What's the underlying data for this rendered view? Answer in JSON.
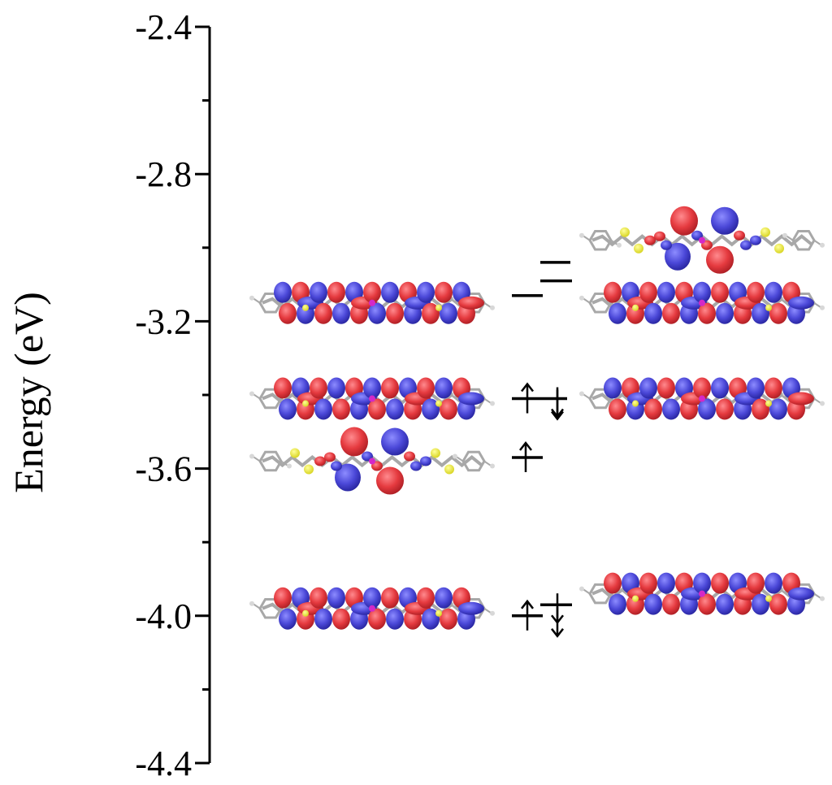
{
  "chart_data": {
    "type": "energy-level-diagram",
    "ylabel": "Energy (eV)",
    "ylim": [
      -4.4,
      -2.4
    ],
    "yticks": [
      {
        "value": -2.4,
        "label": "-2.4"
      },
      {
        "value": -2.8,
        "label": "-2.8"
      },
      {
        "value": -3.2,
        "label": "-3.2"
      },
      {
        "value": -3.6,
        "label": "-3.6"
      },
      {
        "value": -4.0,
        "label": "-4.0"
      },
      {
        "value": -4.4,
        "label": "-4.4"
      }
    ],
    "minor_ticks": [
      -2.6,
      -3.0,
      -3.4,
      -3.8,
      -4.2
    ],
    "columns": [
      {
        "levels": [
          {
            "energy": -3.13,
            "occupancy": "empty"
          },
          {
            "energy": -3.41,
            "occupancy": "up-down"
          },
          {
            "energy": -3.57,
            "occupancy": "up"
          },
          {
            "energy": -4.0,
            "occupancy": "up-down"
          }
        ]
      },
      {
        "levels": [
          {
            "energy": -3.04,
            "occupancy": "empty"
          },
          {
            "energy": -3.09,
            "occupancy": "empty"
          },
          {
            "energy": -3.41,
            "occupancy": "up-down"
          },
          {
            "energy": -3.97,
            "occupancy": "up-down"
          }
        ]
      }
    ],
    "orbital_images": [
      {
        "column": "left",
        "energy": -3.15,
        "shape": "delocalized"
      },
      {
        "column": "left",
        "energy": -3.41,
        "shape": "delocalized"
      },
      {
        "column": "left",
        "energy": -3.58,
        "shape": "central"
      },
      {
        "column": "left",
        "energy": -3.98,
        "shape": "delocalized"
      },
      {
        "column": "right",
        "energy": -2.98,
        "shape": "central"
      },
      {
        "column": "right",
        "energy": -3.15,
        "shape": "delocalized"
      },
      {
        "column": "right",
        "energy": -3.41,
        "shape": "delocalized"
      },
      {
        "column": "right",
        "energy": -3.94,
        "shape": "delocalized"
      }
    ],
    "colors": {
      "axis": "#000000",
      "lobe_positive": "#e53a3f",
      "lobe_negative": "#4b48d8",
      "sulfur": "#e6e22a",
      "carbon": "#a8a8a8",
      "metal": "#d428c8"
    }
  }
}
